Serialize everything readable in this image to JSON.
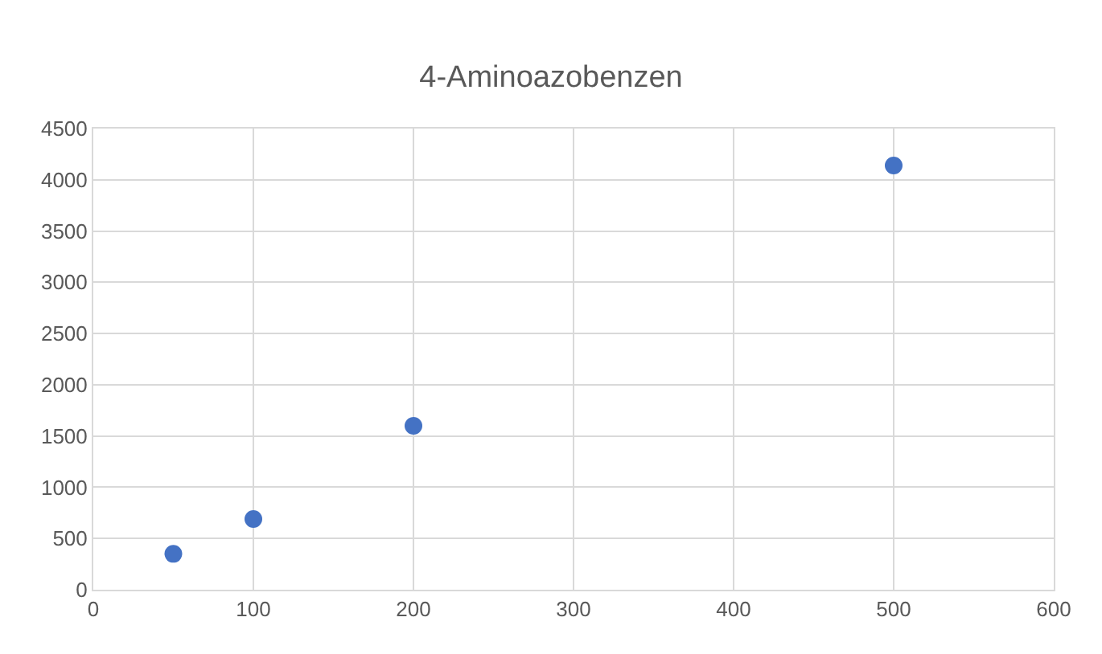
{
  "chart_data": {
    "type": "scatter",
    "title": "4-Aminoazobenzen",
    "x": [
      50,
      100,
      200,
      500
    ],
    "series": [
      {
        "color": "#4472c4",
        "values": [
          350,
          690,
          1600,
          4140
        ]
      }
    ],
    "xlim": [
      0,
      600
    ],
    "xticks": [
      0,
      100,
      200,
      300,
      400,
      500,
      600
    ],
    "ylim": [
      0,
      4500
    ],
    "yticks": [
      0,
      500,
      1000,
      1500,
      2000,
      2500,
      3000,
      3500,
      4000,
      4500
    ],
    "grid": true,
    "marker": "circle"
  }
}
